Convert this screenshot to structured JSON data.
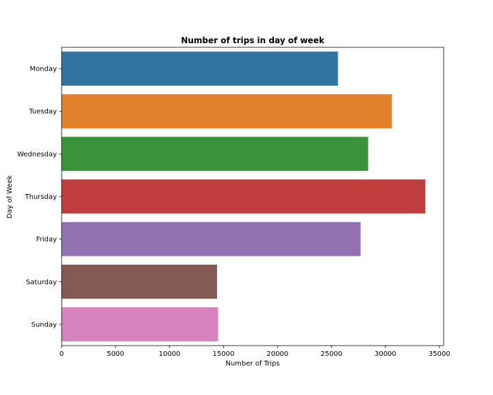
{
  "chart_data": {
    "type": "bar",
    "orientation": "horizontal",
    "title": "Number of trips in day of week",
    "xlabel": "Number of Trips",
    "ylabel": "Day of Week",
    "categories": [
      "Monday",
      "Tuesday",
      "Wednesday",
      "Thursday",
      "Friday",
      "Saturday",
      "Sunday"
    ],
    "values": [
      25600,
      30600,
      28400,
      33700,
      27700,
      14400,
      14500
    ],
    "colors": [
      "#3274a1",
      "#e1812c",
      "#3a923a",
      "#c03d3e",
      "#9372b2",
      "#845b53",
      "#d684bd"
    ],
    "xlim": [
      0,
      35400
    ],
    "xticks": [
      0,
      5000,
      10000,
      15000,
      20000,
      25000,
      30000,
      35000
    ],
    "grid": false,
    "legend": "none"
  }
}
